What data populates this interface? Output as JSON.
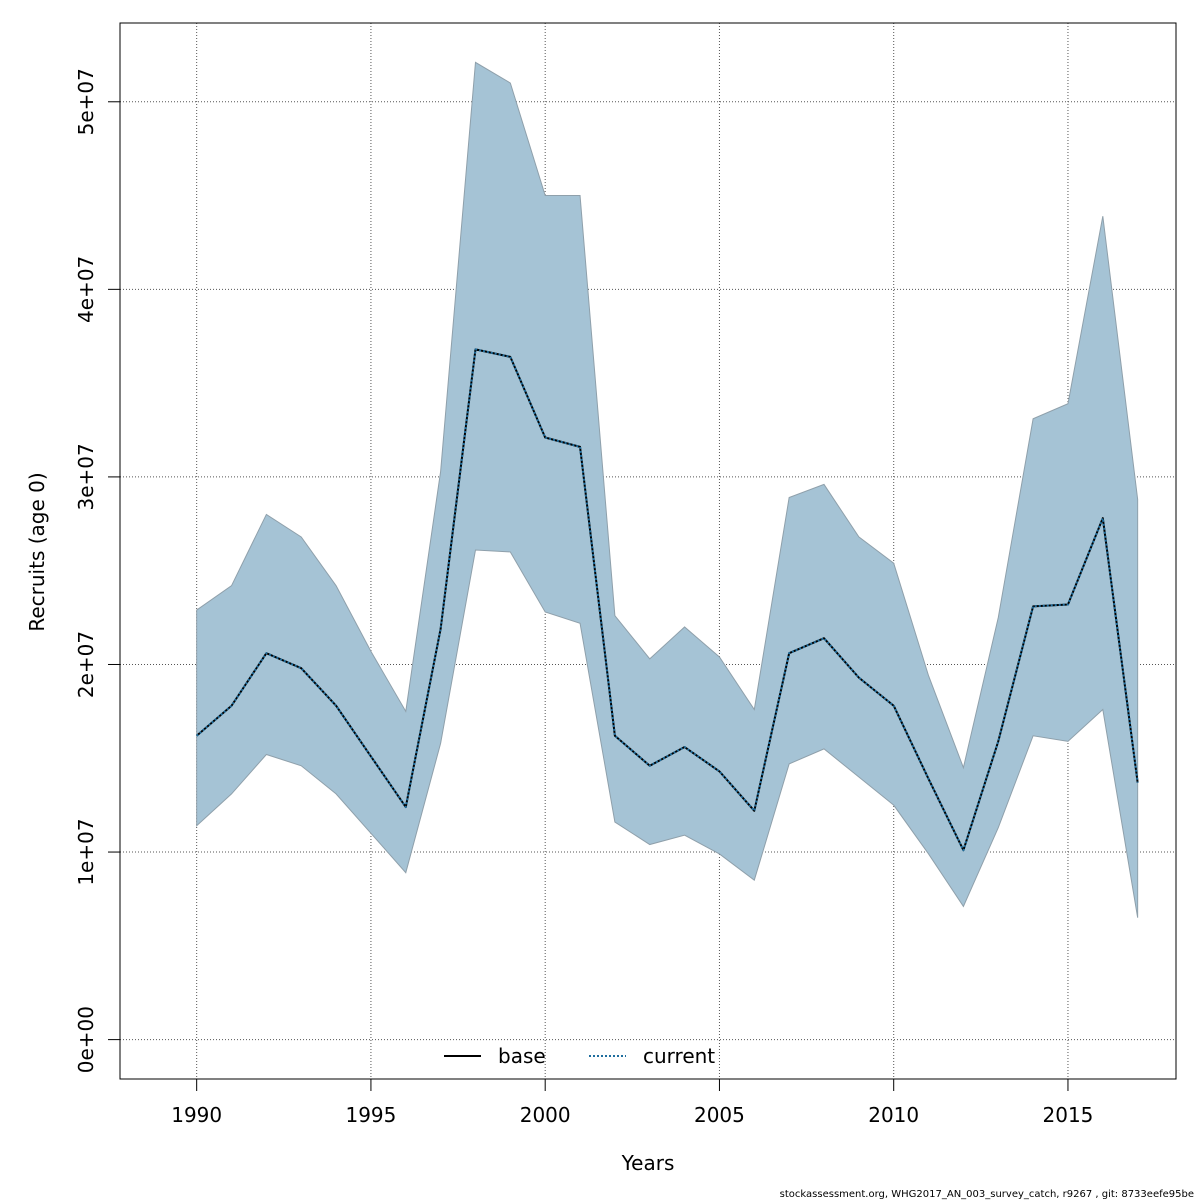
{
  "chart_data": {
    "type": "line",
    "xlabel": "Years",
    "ylabel": "Recruits (age 0)",
    "xlim": [
      1987.8,
      2018.1
    ],
    "ylim": [
      -2100000,
      54200000
    ],
    "x_ticks": [
      1990,
      1995,
      2000,
      2005,
      2010,
      2015
    ],
    "x_tick_labels": [
      "1990",
      "1995",
      "2000",
      "2005",
      "2010",
      "2015"
    ],
    "y_ticks": [
      0,
      10000000,
      20000000,
      30000000,
      40000000,
      50000000
    ],
    "y_tick_labels": [
      "0e+00",
      "1e+07",
      "2e+07",
      "3e+07",
      "4e+07",
      "5e+07"
    ],
    "grid": true,
    "x": [
      1990,
      1991,
      1992,
      1993,
      1994,
      1995,
      1996,
      1997,
      1998,
      1999,
      2000,
      2001,
      2002,
      2003,
      2004,
      2005,
      2006,
      2007,
      2008,
      2009,
      2010,
      2011,
      2012,
      2013,
      2014,
      2015,
      2016,
      2017
    ],
    "band": {
      "upper": [
        22900000,
        24200000,
        28000000,
        26800000,
        24200000,
        20700000,
        17500000,
        30300000,
        52100000,
        51000000,
        45000000,
        45000000,
        22600000,
        20300000,
        22000000,
        20400000,
        17600000,
        28900000,
        29600000,
        26800000,
        25400000,
        19400000,
        14500000,
        22500000,
        33100000,
        33900000,
        43900000,
        28800000
      ],
      "lower": [
        11400000,
        13100000,
        15200000,
        14600000,
        13100000,
        11000000,
        8900000,
        15800000,
        26100000,
        26000000,
        22800000,
        22200000,
        11600000,
        10400000,
        10900000,
        9900000,
        8500000,
        14700000,
        15500000,
        14000000,
        12500000,
        9900000,
        7100000,
        11300000,
        16200000,
        15900000,
        17600000,
        6500000
      ],
      "fill": "#a5c3d5",
      "stroke": "#8fa0ab"
    },
    "series": [
      {
        "name": "base",
        "style": "solid",
        "color": "#000000",
        "values": [
          16200000,
          17800000,
          20600000,
          19800000,
          17800000,
          15100000,
          12400000,
          21900000,
          36800000,
          36400000,
          32100000,
          31600000,
          16200000,
          14600000,
          15600000,
          14300000,
          12200000,
          20600000,
          21400000,
          19300000,
          17800000,
          13900000,
          10100000,
          15900000,
          23100000,
          23200000,
          27800000,
          13700000
        ]
      },
      {
        "name": "current",
        "style": "dotted",
        "color": "#1f6e9e",
        "values": [
          16200000,
          17800000,
          20600000,
          19800000,
          17800000,
          15100000,
          12400000,
          21900000,
          36800000,
          36400000,
          32100000,
          31600000,
          16200000,
          14600000,
          15600000,
          14300000,
          12200000,
          20600000,
          21400000,
          19300000,
          17800000,
          13900000,
          10100000,
          15900000,
          23100000,
          23200000,
          27800000,
          13700000
        ]
      }
    ],
    "legend_position": "bottom-center",
    "footer": "stockassessment.org, WHG2017_AN_003_survey_catch, r9267 , git: 8733eefe95be"
  }
}
